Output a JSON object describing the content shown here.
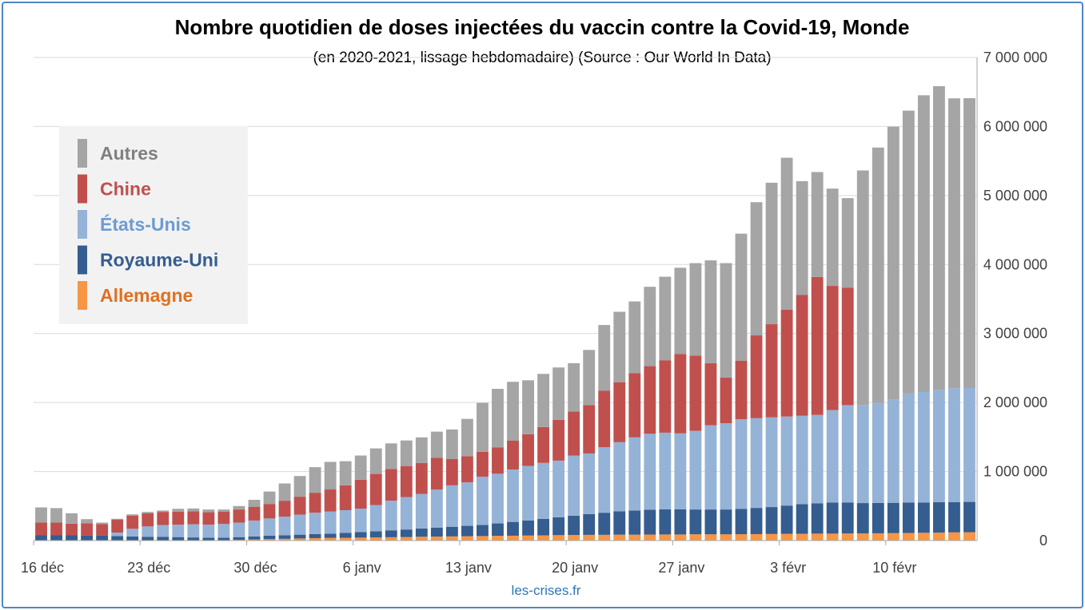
{
  "source_label": "les-crises.fr",
  "colors": {
    "autres": "#a5a5a5",
    "chine": "#c0504d",
    "etats_unis": "#95b3d7",
    "royaume_uni": "#355d8f",
    "allemagne": "#f79646",
    "frame": "#4f86c6",
    "source": "#2e75b6"
  },
  "chart_data": {
    "type": "bar",
    "stacked": true,
    "title": "Nombre quotidien de doses injectées du vaccin contre la Covid-19, Monde",
    "subtitle": "(en 2020-2021, lissage hebdomadaire) (Source : Our World In Data)",
    "ylim": [
      0,
      7000000
    ],
    "y_ticks": [
      0,
      1000000,
      2000000,
      3000000,
      4000000,
      5000000,
      6000000,
      7000000
    ],
    "y_tick_labels": [
      "0",
      "1 000 000",
      "2 000 000",
      "3 000 000",
      "4 000 000",
      "5 000 000",
      "6 000 000",
      "7 000 000"
    ],
    "y_axis_position": "right",
    "grid": true,
    "legend_position": "top-left",
    "x_tick_labels": [
      {
        "index": 0,
        "label": "16 déc"
      },
      {
        "index": 7,
        "label": "23 déc"
      },
      {
        "index": 14,
        "label": "30 déc"
      },
      {
        "index": 21,
        "label": "6 janv"
      },
      {
        "index": 28,
        "label": "13 janv"
      },
      {
        "index": 35,
        "label": "20 janv"
      },
      {
        "index": 42,
        "label": "27 janv"
      },
      {
        "index": 49,
        "label": "3 févr"
      },
      {
        "index": 56,
        "label": "10 févr"
      }
    ],
    "series": [
      {
        "name": "Allemagne",
        "color_key": "allemagne",
        "values": [
          0,
          0,
          0,
          0,
          0,
          0,
          0,
          0,
          0,
          0,
          0,
          0,
          5000,
          10000,
          15000,
          20000,
          25000,
          30000,
          35000,
          38000,
          40000,
          42000,
          45000,
          48000,
          50000,
          55000,
          58000,
          60000,
          63000,
          65000,
          68000,
          70000,
          72000,
          75000,
          78000,
          80000,
          82000,
          83000,
          85000,
          85000,
          87000,
          88000,
          88000,
          90000,
          90000,
          90000,
          92000,
          93000,
          95000,
          97000,
          98000,
          100000,
          100000,
          102000,
          103000,
          105000,
          107000,
          110000,
          112000,
          115000,
          118000,
          120000
        ]
      },
      {
        "name": "Royaume-Uni",
        "color_key": "royaume_uni",
        "values": [
          80000,
          80000,
          75000,
          70000,
          70000,
          65000,
          60000,
          55000,
          55000,
          50000,
          45000,
          40000,
          35000,
          40000,
          45000,
          50000,
          52000,
          55000,
          58000,
          62000,
          70000,
          80000,
          90000,
          100000,
          110000,
          120000,
          130000,
          140000,
          150000,
          160000,
          180000,
          200000,
          220000,
          240000,
          260000,
          280000,
          300000,
          320000,
          340000,
          350000,
          360000,
          365000,
          365000,
          360000,
          360000,
          360000,
          365000,
          380000,
          390000,
          410000,
          430000,
          440000,
          450000,
          450000,
          440000,
          440000,
          440000,
          440000,
          440000,
          440000,
          440000,
          440000
        ]
      },
      {
        "name": "États-Unis",
        "color_key": "etats_unis",
        "values": [
          0,
          0,
          0,
          0,
          0,
          50000,
          110000,
          150000,
          170000,
          180000,
          190000,
          190000,
          200000,
          210000,
          230000,
          250000,
          270000,
          290000,
          310000,
          320000,
          330000,
          340000,
          380000,
          430000,
          470000,
          500000,
          550000,
          600000,
          630000,
          700000,
          720000,
          760000,
          790000,
          810000,
          820000,
          870000,
          880000,
          950000,
          1000000,
          1060000,
          1100000,
          1110000,
          1100000,
          1140000,
          1220000,
          1250000,
          1300000,
          1300000,
          1300000,
          1290000,
          1280000,
          1280000,
          1340000,
          1410000,
          1420000,
          1450000,
          1500000,
          1580000,
          1600000,
          1630000,
          1650000,
          1650000
        ]
      },
      {
        "name": "Chine",
        "color_key": "chine",
        "values": [
          180000,
          180000,
          170000,
          180000,
          170000,
          190000,
          190000,
          190000,
          190000,
          190000,
          190000,
          180000,
          180000,
          190000,
          200000,
          210000,
          230000,
          260000,
          290000,
          320000,
          360000,
          420000,
          450000,
          460000,
          450000,
          450000,
          460000,
          380000,
          380000,
          360000,
          380000,
          420000,
          460000,
          520000,
          590000,
          640000,
          700000,
          820000,
          870000,
          930000,
          980000,
          1050000,
          1150000,
          1090000,
          900000,
          660000,
          850000,
          1200000,
          1350000,
          1550000,
          1750000,
          2000000,
          1800000,
          1700000,
          0,
          0,
          0,
          0,
          0,
          0,
          0,
          0
        ]
      },
      {
        "name": "Autres",
        "color_key": "autres",
        "values": [
          220000,
          210000,
          150000,
          60000,
          20000,
          10000,
          20000,
          20000,
          20000,
          40000,
          40000,
          40000,
          30000,
          50000,
          100000,
          180000,
          250000,
          300000,
          370000,
          400000,
          350000,
          350000,
          370000,
          370000,
          370000,
          370000,
          380000,
          430000,
          540000,
          710000,
          850000,
          850000,
          780000,
          770000,
          760000,
          700000,
          800000,
          950000,
          1020000,
          1040000,
          1150000,
          1210000,
          1250000,
          1340000,
          1490000,
          1660000,
          1840000,
          1930000,
          2050000,
          2200000,
          1650000,
          1520000,
          1410000,
          1300000,
          3400000,
          3700000,
          3950000,
          4100000,
          4300000,
          4400000,
          4200000,
          4200000
        ]
      }
    ]
  }
}
